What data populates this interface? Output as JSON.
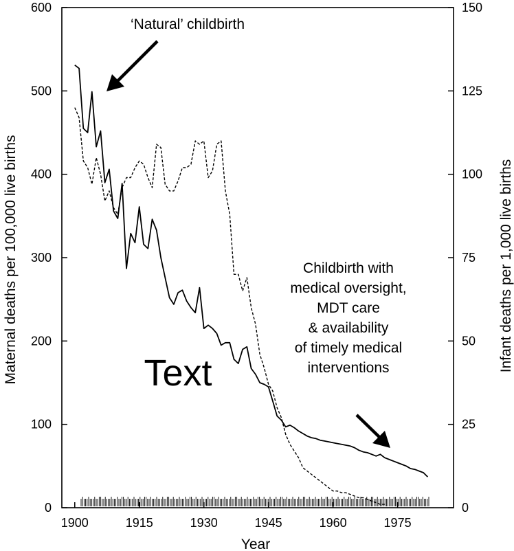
{
  "chart_data": {
    "type": "line",
    "title": "",
    "xlabel": "Year",
    "ylabel_left": "Maternal deaths per 100,000 live births",
    "ylabel_right": "Infant deaths per 1,000 live births",
    "xlim": [
      1897,
      1988
    ],
    "ylim_left": [
      0,
      600
    ],
    "ylim_right": [
      0,
      150
    ],
    "x_ticks": [
      1900,
      1915,
      1930,
      1945,
      1960,
      1975
    ],
    "y_left_ticks": [
      0,
      100,
      200,
      300,
      400,
      500,
      600
    ],
    "y_right_ticks": [
      0,
      25,
      50,
      75,
      100,
      125,
      150
    ],
    "grid": false,
    "legend": "none",
    "series": [
      {
        "axis": "left",
        "style": "solid",
        "x": [
          1900,
          1901,
          1902,
          1903,
          1904,
          1905,
          1906,
          1907,
          1908,
          1909,
          1910,
          1911,
          1912,
          1913,
          1914,
          1915,
          1916,
          1917,
          1918,
          1919,
          1920,
          1921,
          1922,
          1923,
          1924,
          1925,
          1926,
          1927,
          1928,
          1929,
          1930,
          1931,
          1932,
          1933,
          1934,
          1935,
          1936,
          1937,
          1938,
          1939,
          1940,
          1941,
          1942,
          1943,
          1944,
          1945,
          1946,
          1947,
          1948,
          1949,
          1950,
          1951,
          1952,
          1953,
          1954,
          1955,
          1956,
          1957,
          1958,
          1959,
          1960,
          1961,
          1962,
          1963,
          1964,
          1965,
          1966,
          1967,
          1968,
          1969,
          1970,
          1971,
          1972,
          1973,
          1974,
          1975,
          1976,
          1977,
          1978,
          1979,
          1980,
          1981,
          1982
        ],
        "values": [
          531,
          527,
          455,
          450,
          499,
          433,
          452,
          390,
          406,
          356,
          347,
          389,
          287,
          329,
          318,
          361,
          316,
          311,
          346,
          333,
          300,
          276,
          252,
          244,
          258,
          261,
          248,
          240,
          234,
          264,
          215,
          219,
          215,
          209,
          195,
          198,
          198,
          178,
          173,
          190,
          193,
          167,
          160,
          150,
          148,
          145,
          128,
          110,
          105,
          97,
          99,
          96,
          92,
          89,
          86,
          84,
          83,
          81,
          80,
          79,
          78,
          77,
          76,
          75,
          74,
          72,
          69,
          67,
          66,
          64,
          62,
          64,
          60,
          58,
          56,
          54,
          52,
          50,
          47,
          46,
          44,
          42,
          37
        ]
      },
      {
        "axis": "right",
        "style": "dashed",
        "x": [
          1900,
          1901,
          1902,
          1903,
          1904,
          1905,
          1906,
          1907,
          1908,
          1909,
          1910,
          1911,
          1912,
          1913,
          1914,
          1915,
          1916,
          1917,
          1918,
          1919,
          1920,
          1921,
          1922,
          1923,
          1924,
          1925,
          1926,
          1927,
          1928,
          1929,
          1930,
          1931,
          1932,
          1933,
          1934,
          1935,
          1936,
          1937,
          1938,
          1939,
          1940,
          1941,
          1942,
          1943,
          1944,
          1945,
          1946,
          1947,
          1948,
          1949,
          1950,
          1951,
          1952,
          1953,
          1954,
          1955,
          1956,
          1957,
          1958,
          1959,
          1960,
          1961,
          1962,
          1963,
          1964,
          1965,
          1966,
          1967,
          1968,
          1969,
          1970,
          1971,
          1972
        ],
        "values": [
          120,
          117,
          104,
          102,
          97,
          105,
          100,
          92,
          95,
          90,
          88,
          96,
          99,
          99,
          102,
          104,
          103,
          99,
          96,
          109,
          108,
          97,
          95,
          95,
          98,
          102,
          102,
          103,
          110,
          109,
          110,
          99,
          101,
          109,
          110,
          95,
          88,
          70,
          70,
          65,
          69,
          60,
          55,
          46,
          42,
          37,
          35,
          30,
          27,
          22,
          19,
          17,
          15,
          12,
          11,
          10,
          9,
          8,
          7,
          6,
          5,
          5,
          4.5,
          4.5,
          4,
          3.5,
          3,
          3,
          2.5,
          2,
          1.5,
          1,
          1
        ]
      }
    ],
    "annotations": [
      {
        "name": "natural-childbirth",
        "text": [
          "‘Natural’ childbirth"
        ]
      },
      {
        "name": "medical-oversight",
        "text": [
          "Childbirth with",
          "medical oversight,",
          "MDT care",
          "& availability",
          "of timely medical",
          "interventions"
        ]
      },
      {
        "name": "placeholder-text",
        "text": [
          "Text"
        ]
      }
    ]
  }
}
